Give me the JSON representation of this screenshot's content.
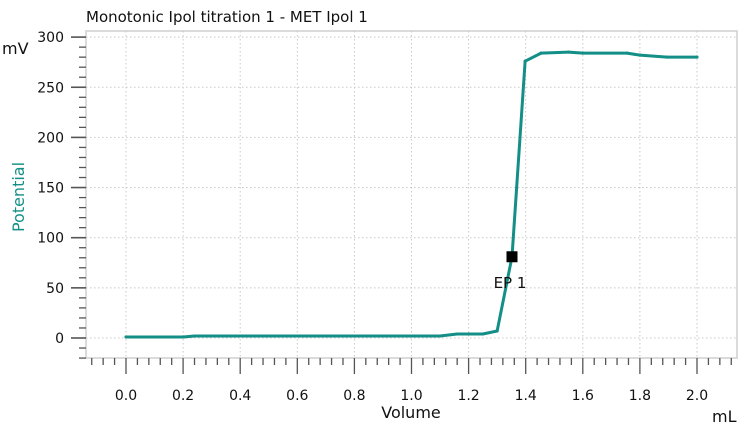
{
  "chart_data": {
    "type": "line",
    "title": "Monotonic Ipol titration 1 - MET Ipol  1",
    "xlabel": "Volume",
    "xunit": "mL",
    "ylabel": "Potential",
    "yunit": "mV",
    "xlim": [
      -0.12,
      2.12
    ],
    "ylim": [
      -20,
      300
    ],
    "xticks": [
      "0.0",
      "0.2",
      "0.4",
      "0.6",
      "0.8",
      "1.0",
      "1.2",
      "1.4",
      "1.6",
      "1.8",
      "2.0"
    ],
    "yticks": [
      "0",
      "50",
      "100",
      "150",
      "200",
      "250",
      "300"
    ],
    "grid": true,
    "series": [
      {
        "color": "#138f87",
        "x": [
          0.0,
          0.2,
          0.24,
          0.9,
          1.1,
          1.16,
          1.25,
          1.3,
          1.352,
          1.398,
          1.454,
          1.55,
          1.6,
          1.755,
          1.8,
          1.895,
          2.0
        ],
        "y": [
          1,
          1,
          2,
          2,
          2,
          4,
          4,
          7,
          81,
          276,
          284,
          285,
          284,
          284,
          282,
          280,
          280
        ]
      }
    ],
    "annotations": [
      {
        "label": "EP 1",
        "x": 1.352,
        "y": 81,
        "marker": "square",
        "color": "#000000"
      }
    ]
  }
}
